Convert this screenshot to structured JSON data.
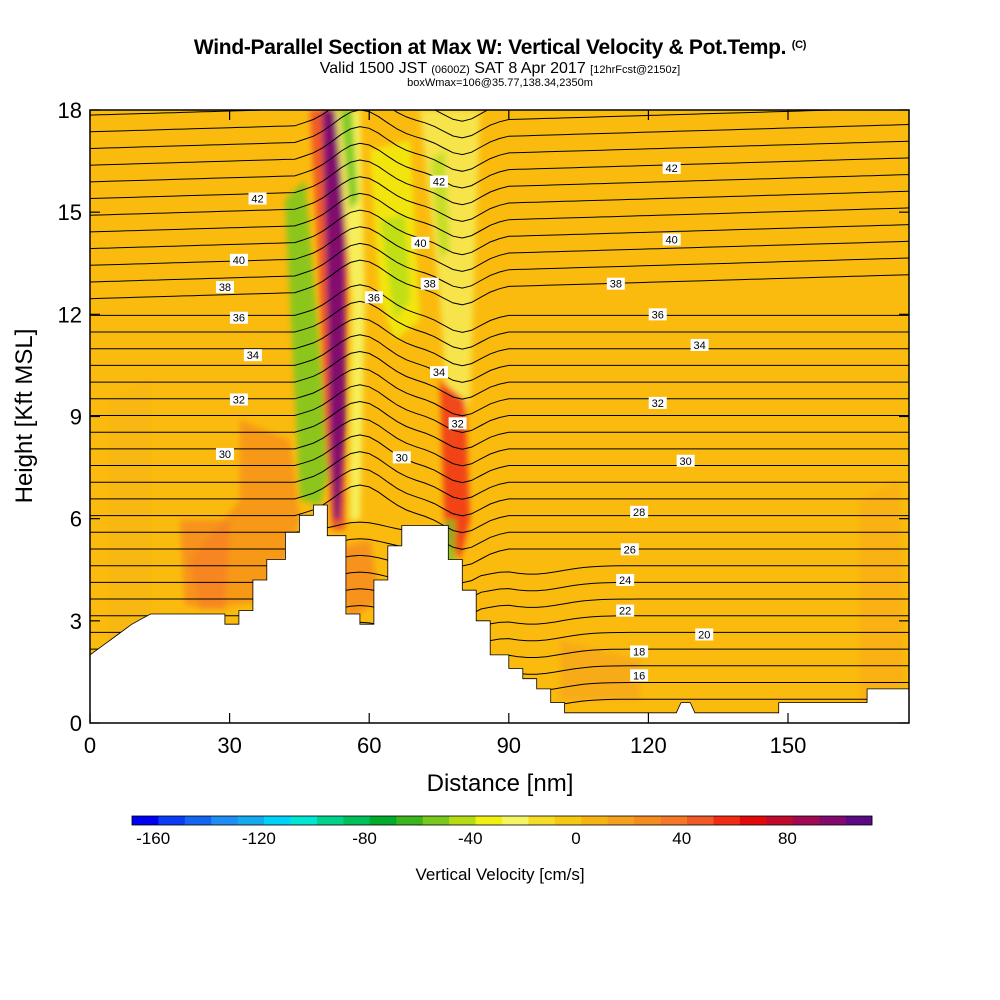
{
  "header": {
    "title": "Wind-Parallel Section at Max W: Vertical Velocity & Pot.Temp.",
    "title_mark": "(C)",
    "subtitle_a": "Valid 1500 JST",
    "subtitle_b": "(0600Z)",
    "subtitle_c": "SAT 8 Apr 2017",
    "subtitle_d": "[12hrFcst@2150z]",
    "subsubtitle": "boxWmax=106@35.77,138.34,2350m"
  },
  "colors": {
    "background_fill": "#fbbb0e",
    "terrain": "#ffffff",
    "contour": "#000000",
    "colorbar": [
      "#0000f0",
      "#0a3cf5",
      "#1466f0",
      "#1e8ef5",
      "#14aaf0",
      "#00d2fa",
      "#00e6d2",
      "#00d28c",
      "#00be5a",
      "#00aa2d",
      "#3cb41e",
      "#78c81e",
      "#b4dc14",
      "#f0f014",
      "#f5f564",
      "#f5dc28",
      "#f5c814",
      "#f5b414",
      "#f5a01e",
      "#f58c1e",
      "#f57828",
      "#f05a28",
      "#f02d14",
      "#e10a0a",
      "#be0a2d",
      "#a00a50",
      "#820a6e",
      "#5a0a82"
    ]
  },
  "chart_data": {
    "type": "heatmap",
    "title": "Wind-Parallel Section at Max W: Vertical Velocity & Pot.Temp.",
    "xlabel": "Distance [nm]",
    "ylabel": "Height [Kft MSL]",
    "xlim": [
      0,
      176
    ],
    "ylim": [
      0,
      18
    ],
    "xticks": [
      0,
      30,
      60,
      90,
      120,
      150
    ],
    "yticks": [
      0,
      3,
      6,
      9,
      12,
      15,
      18
    ],
    "colorbar": {
      "label": "Vertical Velocity [cm/s]",
      "range": [
        -168,
        112
      ],
      "ticks": [
        -160,
        -120,
        -80,
        -40,
        0,
        40,
        80
      ]
    },
    "terrain_kft": [
      [
        0,
        2.0
      ],
      [
        3,
        2.3
      ],
      [
        6,
        2.6
      ],
      [
        9,
        2.9
      ],
      [
        13,
        3.2
      ],
      [
        29,
        3.2
      ],
      [
        29,
        2.9
      ],
      [
        32,
        2.9
      ],
      [
        32,
        3.3
      ],
      [
        35,
        3.3
      ],
      [
        35,
        4.2
      ],
      [
        38,
        4.2
      ],
      [
        38,
        4.8
      ],
      [
        42,
        4.8
      ],
      [
        42,
        5.6
      ],
      [
        45,
        5.6
      ],
      [
        45,
        6.1
      ],
      [
        48,
        6.1
      ],
      [
        48,
        6.4
      ],
      [
        51,
        6.4
      ],
      [
        51,
        5.5
      ],
      [
        55,
        5.5
      ],
      [
        55,
        3.2
      ],
      [
        58,
        3.2
      ],
      [
        58,
        2.9
      ],
      [
        61,
        2.9
      ],
      [
        61,
        4.2
      ],
      [
        64,
        4.2
      ],
      [
        64,
        5.2
      ],
      [
        67,
        5.2
      ],
      [
        67,
        5.8
      ],
      [
        77,
        5.8
      ],
      [
        77,
        4.8
      ],
      [
        80,
        4.8
      ],
      [
        80,
        3.9
      ],
      [
        83,
        3.9
      ],
      [
        83,
        3.0
      ],
      [
        86,
        3.0
      ],
      [
        86,
        2.0
      ],
      [
        90,
        2.0
      ],
      [
        90,
        1.6
      ],
      [
        93,
        1.6
      ],
      [
        93,
        1.3
      ],
      [
        96,
        1.3
      ],
      [
        96,
        1.0
      ],
      [
        99,
        1.0
      ],
      [
        99,
        0.6
      ],
      [
        102,
        0.6
      ],
      [
        102,
        0.3
      ],
      [
        126,
        0.3
      ],
      [
        127,
        0.6
      ],
      [
        129,
        0.6
      ],
      [
        130,
        0.3
      ],
      [
        148,
        0.3
      ],
      [
        148,
        0.6
      ],
      [
        167,
        0.6
      ],
      [
        167,
        1.0
      ],
      [
        176,
        1.0
      ]
    ],
    "theta_labels": [
      {
        "text": "42",
        "x": 36,
        "y": 15.4
      },
      {
        "text": "42",
        "x": 75,
        "y": 15.9
      },
      {
        "text": "42",
        "x": 125,
        "y": 16.3
      },
      {
        "text": "40",
        "x": 32,
        "y": 13.6
      },
      {
        "text": "40",
        "x": 71,
        "y": 14.1
      },
      {
        "text": "40",
        "x": 125,
        "y": 14.2
      },
      {
        "text": "38",
        "x": 29,
        "y": 12.8
      },
      {
        "text": "38",
        "x": 73,
        "y": 12.9
      },
      {
        "text": "38",
        "x": 113,
        "y": 12.9
      },
      {
        "text": "36",
        "x": 32,
        "y": 11.9
      },
      {
        "text": "36",
        "x": 61,
        "y": 12.5
      },
      {
        "text": "36",
        "x": 122,
        "y": 12.0
      },
      {
        "text": "34",
        "x": 35,
        "y": 10.8
      },
      {
        "text": "34",
        "x": 75,
        "y": 10.3
      },
      {
        "text": "34",
        "x": 131,
        "y": 11.1
      },
      {
        "text": "32",
        "x": 32,
        "y": 9.5
      },
      {
        "text": "32",
        "x": 79,
        "y": 8.8
      },
      {
        "text": "32",
        "x": 122,
        "y": 9.4
      },
      {
        "text": "30",
        "x": 29,
        "y": 7.9
      },
      {
        "text": "30",
        "x": 67,
        "y": 7.8
      },
      {
        "text": "30",
        "x": 128,
        "y": 7.7
      },
      {
        "text": "28",
        "x": 118,
        "y": 6.2
      },
      {
        "text": "26",
        "x": 116,
        "y": 5.1
      },
      {
        "text": "24",
        "x": 115,
        "y": 4.2
      },
      {
        "text": "22",
        "x": 115,
        "y": 3.3
      },
      {
        "text": "20",
        "x": 132,
        "y": 2.6
      },
      {
        "text": "18",
        "x": 118,
        "y": 2.1
      },
      {
        "text": "16",
        "x": 118,
        "y": 1.4
      }
    ]
  }
}
